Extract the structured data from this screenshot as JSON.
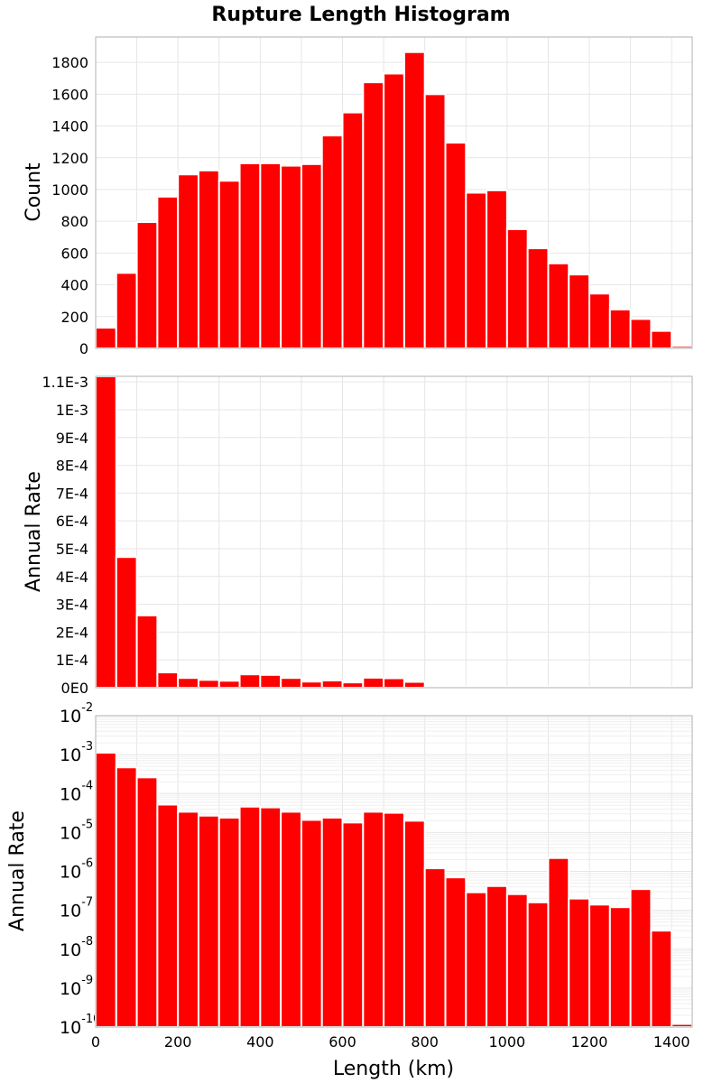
{
  "title": "Rupture Length Histogram",
  "colors": {
    "bar": "#ff0000",
    "bar_edge": "#ffffff",
    "grid": "#e6e6e6",
    "frame": "#b0b0b0"
  },
  "chart_data": [
    {
      "type": "bar",
      "ylabel": "Count",
      "xlim": [
        0,
        1450
      ],
      "ylim": [
        0,
        1960
      ],
      "yticks": [
        0,
        200,
        400,
        600,
        800,
        1000,
        1200,
        1400,
        1600,
        1800
      ],
      "ytick_labels": [
        "0",
        "200",
        "400",
        "600",
        "800",
        "1000",
        "1200",
        "1400",
        "1600",
        "1800"
      ],
      "grid": true,
      "bin_width": 50,
      "x": [
        0,
        50,
        100,
        150,
        200,
        250,
        300,
        350,
        400,
        450,
        500,
        550,
        600,
        650,
        700,
        750,
        800,
        850,
        900,
        950,
        1000,
        1050,
        1100,
        1150,
        1200,
        1250,
        1300,
        1350,
        1400
      ],
      "values": [
        130,
        475,
        795,
        955,
        1095,
        1120,
        1055,
        1165,
        1165,
        1150,
        1160,
        1340,
        1485,
        1675,
        1730,
        1865,
        1600,
        1295,
        980,
        995,
        750,
        630,
        535,
        465,
        345,
        245,
        185,
        110,
        15
      ]
    },
    {
      "type": "bar",
      "ylabel": "Annual Rate",
      "xlim": [
        0,
        1450
      ],
      "ylim": [
        0,
        0.00112
      ],
      "yticks": [
        0,
        0.0001,
        0.0002,
        0.0003,
        0.0004,
        0.0005,
        0.0006,
        0.0007,
        0.0008,
        0.0009,
        0.001,
        0.0011
      ],
      "ytick_labels": [
        "0E0",
        "1E-4",
        "2E-4",
        "3E-4",
        "4E-4",
        "5E-4",
        "6E-4",
        "7E-4",
        "8E-4",
        "9E-4",
        "1E-3",
        "1.1E-3"
      ],
      "grid": true,
      "bin_width": 50,
      "x": [
        0,
        50,
        100,
        150,
        200,
        250,
        300,
        350,
        400,
        450,
        500,
        550,
        600,
        650,
        700,
        750,
        800,
        850,
        900,
        950,
        1000,
        1050,
        1100,
        1150,
        1200,
        1250,
        1300,
        1350,
        1400
      ],
      "values": [
        0.00112,
        0.00047,
        0.00026,
        5.5e-05,
        3.5e-05,
        2.8e-05,
        2.5e-05,
        4.8e-05,
        4.6e-05,
        3.5e-05,
        2.2e-05,
        2.6e-05,
        1.9e-05,
        3.6e-05,
        3.4e-05,
        2.1e-05,
        1.2e-06,
        7e-07,
        2.8e-07,
        4e-07,
        2.5e-07,
        1.6e-07,
        2.2e-06,
        2e-07,
        1.4e-07,
        1.2e-07,
        3.5e-07,
        3e-08,
        1.2e-10
      ]
    },
    {
      "type": "bar",
      "ylabel": "Annual Rate",
      "xlabel": "Length (km)",
      "yscale": "log",
      "xlim": [
        0,
        1450
      ],
      "ylim": [
        1e-10,
        0.01
      ],
      "ytick_exponents": [
        -2,
        -3,
        -4,
        -5,
        -6,
        -7,
        -8,
        -9,
        -10
      ],
      "ytick_base": "10",
      "xticks": [
        0,
        200,
        400,
        600,
        800,
        1000,
        1200,
        1400
      ],
      "xtick_labels": [
        "0",
        "200",
        "400",
        "600",
        "800",
        "1000",
        "1200",
        "1400"
      ],
      "grid": true,
      "bin_width": 50,
      "x": [
        0,
        50,
        100,
        150,
        200,
        250,
        300,
        350,
        400,
        450,
        500,
        550,
        600,
        650,
        700,
        750,
        800,
        850,
        900,
        950,
        1000,
        1050,
        1100,
        1150,
        1200,
        1250,
        1300,
        1350,
        1400
      ],
      "values": [
        0.00112,
        0.00047,
        0.00026,
        5.2e-05,
        3.4e-05,
        2.7e-05,
        2.4e-05,
        4.6e-05,
        4.4e-05,
        3.4e-05,
        2.1e-05,
        2.4e-05,
        1.8e-05,
        3.4e-05,
        3.2e-05,
        2e-05,
        1.2e-06,
        7e-07,
        2.9e-07,
        4.2e-07,
        2.6e-07,
        1.6e-07,
        2.2e-06,
        2e-07,
        1.4e-07,
        1.2e-07,
        3.5e-07,
        3e-08,
        1.2e-10
      ]
    }
  ]
}
